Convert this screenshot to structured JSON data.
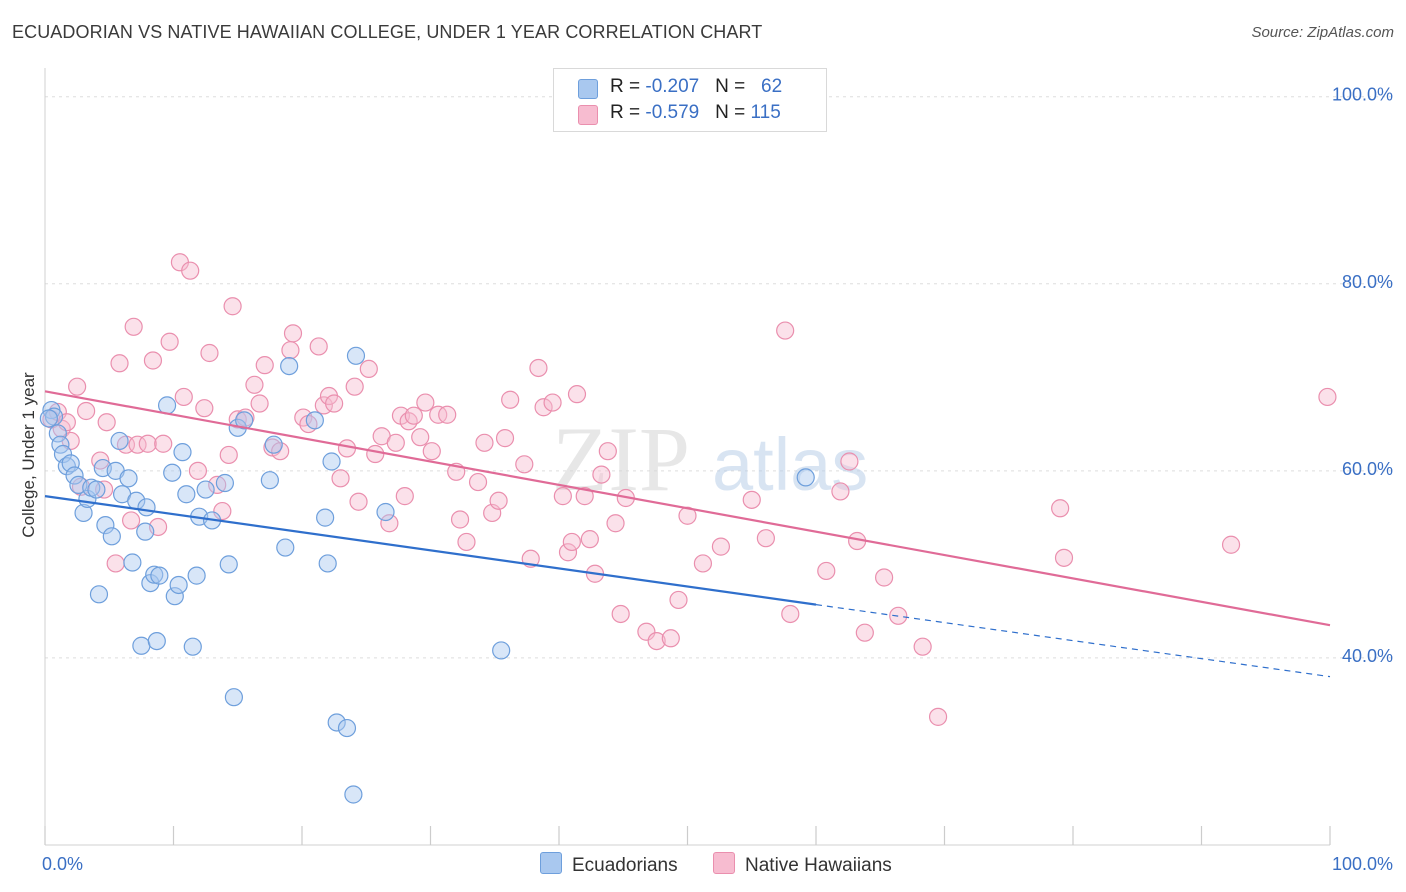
{
  "title": "ECUADORIAN VS NATIVE HAWAIIAN COLLEGE, UNDER 1 YEAR CORRELATION CHART",
  "source": "Source: ZipAtlas.com",
  "legend": {
    "rows": [
      {
        "r_label": "R = ",
        "r_value": "-0.207",
        "n_label": "N = ",
        "n_value": "62"
      },
      {
        "r_label": "R = ",
        "r_value": "-0.579",
        "n_label": "N = ",
        "n_value": "115"
      }
    ]
  },
  "watermark": {
    "zip": "ZIP",
    "atlas": "atlas"
  },
  "colors": {
    "ecuadorians_fill": "#a9c8ef",
    "ecuadorians_stroke": "#6e9fdc",
    "ecuadorians_line": "#2f6fcc",
    "hawaiians_fill": "#f7bcd0",
    "hawaiians_stroke": "#ea8fae",
    "hawaiians_line": "#e06b97",
    "axis_label": "#3a6fc4",
    "grid": "#dddddd"
  },
  "chart_data": {
    "type": "scatter",
    "title": "ECUADORIAN VS NATIVE HAWAIIAN COLLEGE, UNDER 1 YEAR CORRELATION CHART",
    "xlabel": "",
    "ylabel": "College, Under 1 year",
    "xlim": [
      0,
      100
    ],
    "ylim": [
      20,
      102
    ],
    "x_tick_labels": [
      "0.0%",
      "100.0%"
    ],
    "y_ticks": [
      40,
      60,
      80,
      100
    ],
    "y_tick_labels": [
      "40.0%",
      "60.0%",
      "80.0%",
      "100.0%"
    ],
    "grid": true,
    "legend_position": "bottom",
    "series": [
      {
        "name": "Ecuadorians",
        "r": -0.207,
        "n": 62,
        "trend": {
          "x0": 0,
          "y0": 57.3,
          "x1": 60,
          "y1": 45.7,
          "dashed_to_x": 100,
          "dashed_to_y": 38.0
        },
        "points": [
          [
            0.5,
            66.5
          ],
          [
            0.7,
            65.8
          ],
          [
            1.0,
            64.0
          ],
          [
            1.2,
            62.8
          ],
          [
            1.4,
            61.8
          ],
          [
            1.7,
            60.5
          ],
          [
            2.0,
            60.8
          ],
          [
            2.3,
            59.5
          ],
          [
            2.6,
            58.5
          ],
          [
            3.0,
            55.5
          ],
          [
            3.3,
            57.0
          ],
          [
            3.6,
            58.2
          ],
          [
            4.0,
            58.0
          ],
          [
            4.2,
            46.8
          ],
          [
            4.5,
            60.3
          ],
          [
            4.7,
            54.2
          ],
          [
            5.2,
            53.0
          ],
          [
            5.5,
            60.0
          ],
          [
            5.8,
            63.2
          ],
          [
            6.0,
            57.5
          ],
          [
            6.5,
            59.2
          ],
          [
            6.8,
            50.2
          ],
          [
            7.1,
            56.8
          ],
          [
            7.5,
            41.3
          ],
          [
            7.8,
            53.5
          ],
          [
            7.9,
            56.1
          ],
          [
            8.2,
            48.0
          ],
          [
            8.5,
            48.9
          ],
          [
            8.7,
            41.8
          ],
          [
            8.9,
            48.8
          ],
          [
            9.5,
            67.0
          ],
          [
            9.9,
            59.8
          ],
          [
            10.1,
            46.6
          ],
          [
            10.4,
            47.8
          ],
          [
            10.7,
            62.0
          ],
          [
            11.0,
            57.5
          ],
          [
            11.5,
            41.2
          ],
          [
            11.8,
            48.8
          ],
          [
            12.0,
            55.1
          ],
          [
            12.5,
            58.0
          ],
          [
            13.0,
            54.7
          ],
          [
            14.0,
            58.7
          ],
          [
            14.3,
            50.0
          ],
          [
            14.7,
            35.8
          ],
          [
            15.0,
            64.6
          ],
          [
            15.5,
            65.4
          ],
          [
            17.5,
            59.0
          ],
          [
            17.8,
            62.8
          ],
          [
            18.7,
            51.8
          ],
          [
            19.0,
            71.2
          ],
          [
            21.0,
            65.4
          ],
          [
            21.8,
            55.0
          ],
          [
            22.0,
            50.1
          ],
          [
            22.3,
            61.0
          ],
          [
            22.7,
            33.1
          ],
          [
            23.5,
            32.5
          ],
          [
            24.0,
            25.4
          ],
          [
            24.2,
            72.3
          ],
          [
            26.5,
            55.6
          ],
          [
            35.5,
            40.8
          ],
          [
            59.2,
            59.3
          ],
          [
            0.3,
            65.6
          ]
        ]
      },
      {
        "name": "Native Hawaiians",
        "r": -0.579,
        "n": 115,
        "trend": {
          "x0": 0,
          "y0": 68.5,
          "x1": 100,
          "y1": 43.5
        },
        "points": [
          [
            0.5,
            65.5
          ],
          [
            1.0,
            66.3
          ],
          [
            1.3,
            64.5
          ],
          [
            1.7,
            65.2
          ],
          [
            2.0,
            63.2
          ],
          [
            2.5,
            69.0
          ],
          [
            2.8,
            58.3
          ],
          [
            3.2,
            66.4
          ],
          [
            4.3,
            61.1
          ],
          [
            4.6,
            58.0
          ],
          [
            4.8,
            65.2
          ],
          [
            5.5,
            50.1
          ],
          [
            5.8,
            71.5
          ],
          [
            6.3,
            62.8
          ],
          [
            6.7,
            54.7
          ],
          [
            6.9,
            75.4
          ],
          [
            7.2,
            62.8
          ],
          [
            8.0,
            62.9
          ],
          [
            8.4,
            71.8
          ],
          [
            8.8,
            54.0
          ],
          [
            9.2,
            62.9
          ],
          [
            9.7,
            73.8
          ],
          [
            10.5,
            82.3
          ],
          [
            10.8,
            67.9
          ],
          [
            11.3,
            81.4
          ],
          [
            11.9,
            60.0
          ],
          [
            12.4,
            66.7
          ],
          [
            12.8,
            72.6
          ],
          [
            13.4,
            58.5
          ],
          [
            13.8,
            55.7
          ],
          [
            14.3,
            61.7
          ],
          [
            14.6,
            77.6
          ],
          [
            15.0,
            65.5
          ],
          [
            15.6,
            65.7
          ],
          [
            16.3,
            69.2
          ],
          [
            16.7,
            67.2
          ],
          [
            17.1,
            71.3
          ],
          [
            17.7,
            62.5
          ],
          [
            18.3,
            62.1
          ],
          [
            19.1,
            72.9
          ],
          [
            19.3,
            74.7
          ],
          [
            20.1,
            65.7
          ],
          [
            20.5,
            65.0
          ],
          [
            21.3,
            73.3
          ],
          [
            21.7,
            67.0
          ],
          [
            22.1,
            68.0
          ],
          [
            22.5,
            67.2
          ],
          [
            23.0,
            59.2
          ],
          [
            23.5,
            62.4
          ],
          [
            24.1,
            69.0
          ],
          [
            24.4,
            56.7
          ],
          [
            25.2,
            70.9
          ],
          [
            25.7,
            61.8
          ],
          [
            26.2,
            63.7
          ],
          [
            26.8,
            54.4
          ],
          [
            27.3,
            63.0
          ],
          [
            27.7,
            65.9
          ],
          [
            28.0,
            57.3
          ],
          [
            28.3,
            65.3
          ],
          [
            28.7,
            65.9
          ],
          [
            29.2,
            63.6
          ],
          [
            29.6,
            67.3
          ],
          [
            30.1,
            62.1
          ],
          [
            30.6,
            66.0
          ],
          [
            31.3,
            66.0
          ],
          [
            32.0,
            59.9
          ],
          [
            32.3,
            54.8
          ],
          [
            32.8,
            52.4
          ],
          [
            33.7,
            58.8
          ],
          [
            34.2,
            63.0
          ],
          [
            34.8,
            55.5
          ],
          [
            35.3,
            56.8
          ],
          [
            35.8,
            63.5
          ],
          [
            36.2,
            67.6
          ],
          [
            37.3,
            60.7
          ],
          [
            37.8,
            50.6
          ],
          [
            38.4,
            71.0
          ],
          [
            38.8,
            66.8
          ],
          [
            39.5,
            67.3
          ],
          [
            40.3,
            57.3
          ],
          [
            40.7,
            51.3
          ],
          [
            41.0,
            52.4
          ],
          [
            41.4,
            68.2
          ],
          [
            42.0,
            57.3
          ],
          [
            42.4,
            52.7
          ],
          [
            42.8,
            49.0
          ],
          [
            43.3,
            59.6
          ],
          [
            43.8,
            62.1
          ],
          [
            44.4,
            54.4
          ],
          [
            44.8,
            44.7
          ],
          [
            45.2,
            57.1
          ],
          [
            46.8,
            42.8
          ],
          [
            47.6,
            41.8
          ],
          [
            48.7,
            42.1
          ],
          [
            49.3,
            46.2
          ],
          [
            50.0,
            55.2
          ],
          [
            51.2,
            50.1
          ],
          [
            52.6,
            51.9
          ],
          [
            55.0,
            56.9
          ],
          [
            56.1,
            52.8
          ],
          [
            57.6,
            75.0
          ],
          [
            58.0,
            44.7
          ],
          [
            60.8,
            49.3
          ],
          [
            61.9,
            57.8
          ],
          [
            62.6,
            61.0
          ],
          [
            63.2,
            52.5
          ],
          [
            63.8,
            42.7
          ],
          [
            65.3,
            48.6
          ],
          [
            66.4,
            44.5
          ],
          [
            68.3,
            41.2
          ],
          [
            69.5,
            33.7
          ],
          [
            79.0,
            56.0
          ],
          [
            79.3,
            50.7
          ],
          [
            92.3,
            52.1
          ],
          [
            99.8,
            67.9
          ]
        ]
      }
    ]
  }
}
